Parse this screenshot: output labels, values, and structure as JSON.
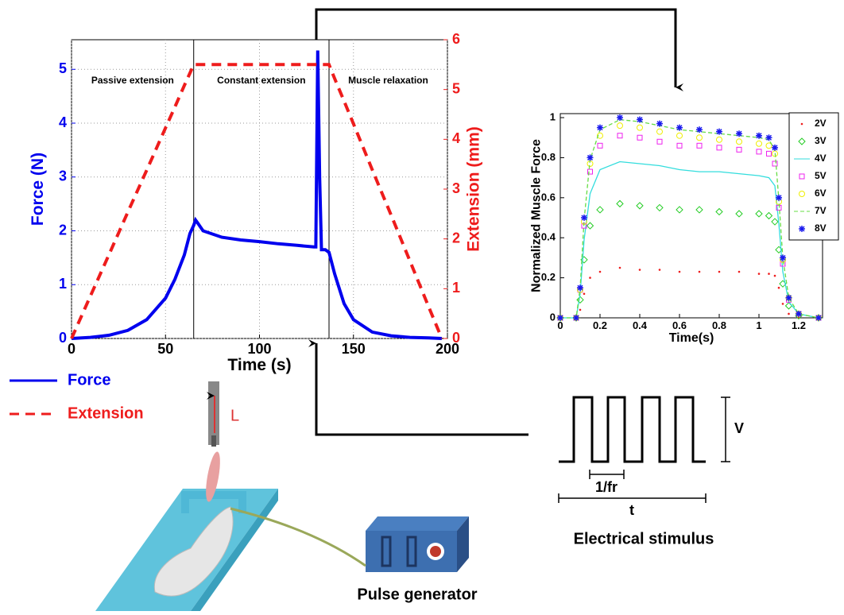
{
  "chart_data": [
    {
      "type": "line",
      "xlabel": "Time (s)",
      "ylabel": "Force (N)",
      "y2label": "Extension (mm)",
      "x": [
        0,
        10,
        20,
        30,
        40,
        50,
        55,
        60,
        63,
        65,
        66,
        67,
        70,
        80,
        90,
        100,
        110,
        120,
        129,
        130,
        131,
        132,
        133,
        135,
        137,
        140,
        145,
        150,
        160,
        170,
        180,
        190,
        197
      ],
      "series": [
        {
          "name": "Force",
          "color": "#0000ee",
          "style": "solid",
          "values": [
            0,
            0.02,
            0.06,
            0.15,
            0.35,
            0.75,
            1.1,
            1.55,
            1.95,
            2.1,
            2.2,
            2.15,
            2.0,
            1.88,
            1.83,
            1.8,
            1.76,
            1.73,
            1.7,
            1.7,
            5.35,
            3.0,
            1.65,
            1.65,
            1.6,
            1.2,
            0.65,
            0.35,
            0.12,
            0.05,
            0.02,
            0.01,
            0
          ]
        },
        {
          "name": "Extension",
          "color": "#ee1c1c",
          "style": "dashed",
          "axis": "y2",
          "values": [
            0,
            0.85,
            1.69,
            2.54,
            3.38,
            4.23,
            4.65,
            5.08,
            5.33,
            5.5,
            5.5,
            5.5,
            5.5,
            5.5,
            5.5,
            5.5,
            5.5,
            5.5,
            5.5,
            5.5,
            5.5,
            5.5,
            5.5,
            5.5,
            5.5,
            5.22,
            4.77,
            4.31,
            3.39,
            2.48,
            1.56,
            0.64,
            0
          ]
        }
      ],
      "xlim": [
        0,
        200
      ],
      "xticks": [
        0,
        50,
        100,
        150,
        200
      ],
      "ylim": [
        0,
        5.55
      ],
      "yticks": [
        0,
        1,
        2,
        3,
        4,
        5
      ],
      "y2lim": [
        0,
        6
      ],
      "y2ticks": [
        0,
        1,
        2,
        3,
        4,
        5,
        6
      ],
      "grid": true,
      "legend": "below",
      "vlines": [
        65,
        137
      ],
      "annotations": [
        "Passive extension",
        "Constant extension",
        "Muscle relaxation"
      ]
    },
    {
      "type": "scatter",
      "xlabel": "Time(s)",
      "ylabel": "Normalized Muscle Force",
      "x": [
        0,
        0.08,
        0.1,
        0.12,
        0.15,
        0.2,
        0.3,
        0.4,
        0.5,
        0.6,
        0.7,
        0.8,
        0.9,
        1.0,
        1.05,
        1.08,
        1.1,
        1.12,
        1.15,
        1.2,
        1.3
      ],
      "series": [
        {
          "name": "2V",
          "color": "#ee1c1c",
          "marker": "dot",
          "values": [
            0,
            0,
            0.04,
            0.12,
            0.2,
            0.23,
            0.25,
            0.24,
            0.24,
            0.23,
            0.23,
            0.23,
            0.23,
            0.22,
            0.22,
            0.21,
            0.15,
            0.07,
            0.02,
            0,
            0
          ]
        },
        {
          "name": "3V",
          "color": "#22cc22",
          "marker": "diamond",
          "values": [
            0,
            0,
            0.09,
            0.29,
            0.46,
            0.54,
            0.57,
            0.56,
            0.55,
            0.54,
            0.54,
            0.53,
            0.52,
            0.52,
            0.51,
            0.48,
            0.34,
            0.17,
            0.06,
            0.01,
            0
          ]
        },
        {
          "name": "4V",
          "color": "#33dddd",
          "marker": "line",
          "values": [
            0,
            0,
            0.12,
            0.39,
            0.62,
            0.74,
            0.78,
            0.77,
            0.76,
            0.74,
            0.73,
            0.73,
            0.72,
            0.71,
            0.7,
            0.66,
            0.47,
            0.23,
            0.08,
            0.02,
            0
          ]
        },
        {
          "name": "5V",
          "color": "#ee22ee",
          "marker": "square",
          "values": [
            0,
            0,
            0.14,
            0.46,
            0.73,
            0.86,
            0.91,
            0.9,
            0.88,
            0.86,
            0.86,
            0.85,
            0.84,
            0.83,
            0.82,
            0.77,
            0.55,
            0.27,
            0.09,
            0.02,
            0
          ]
        },
        {
          "name": "6V",
          "color": "#eeee00",
          "marker": "circle",
          "values": [
            0,
            0,
            0.14,
            0.48,
            0.77,
            0.91,
            0.96,
            0.95,
            0.93,
            0.91,
            0.9,
            0.89,
            0.88,
            0.87,
            0.86,
            0.82,
            0.58,
            0.29,
            0.1,
            0.02,
            0
          ]
        },
        {
          "name": "7V",
          "color": "#66dd44",
          "marker": "dashed",
          "values": [
            0,
            0,
            0.15,
            0.49,
            0.79,
            0.94,
            0.99,
            0.98,
            0.96,
            0.94,
            0.93,
            0.92,
            0.91,
            0.9,
            0.89,
            0.84,
            0.59,
            0.3,
            0.1,
            0.02,
            0
          ]
        },
        {
          "name": "8V",
          "color": "#1a1aee",
          "marker": "star",
          "values": [
            0,
            0,
            0.15,
            0.5,
            0.8,
            0.95,
            1,
            0.99,
            0.97,
            0.95,
            0.94,
            0.93,
            0.92,
            0.91,
            0.9,
            0.85,
            0.6,
            0.3,
            0.1,
            0.02,
            0
          ]
        }
      ],
      "xlim": [
        0,
        1.32
      ],
      "xticks": [
        0,
        0.2,
        0.4,
        0.6,
        0.8,
        1,
        1.2
      ],
      "ylim": [
        0,
        1.02
      ],
      "yticks": [
        0,
        0.2,
        0.4,
        0.6,
        0.8,
        1
      ],
      "grid": false,
      "legend": "right"
    }
  ],
  "diagram": {
    "amplitude_label": "V",
    "period_label": "1/fr",
    "duration_label": "t",
    "stimulus_label": "Electrical stimulus",
    "generator_label": "Pulse generator",
    "length_label": "L"
  }
}
